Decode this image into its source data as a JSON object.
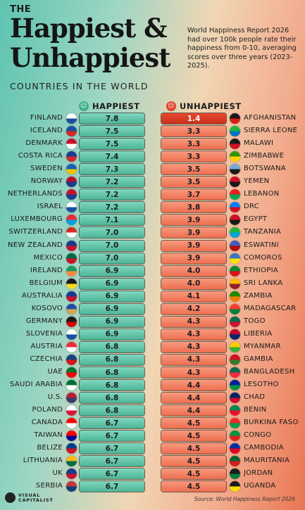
{
  "header": {
    "the": "THE",
    "title_line1": "Happiest &",
    "title_line2": "Unhappiest",
    "subtitle": "COUNTRIES IN THE WORLD",
    "intro": "World Happiness Report 2026 had over 100k people rate their happiness from 0-10, averaging scores over three years (2023-2025)."
  },
  "legend": {
    "happiest": "HAPPIEST",
    "unhappiest": "UNHAPPIEST",
    "happiest_icon": "smiley-face-icon",
    "unhappiest_icon": "sad-face-icon",
    "happiest_color": "#4db496",
    "unhappiest_color": "#ee6e4f",
    "top_unhappiest_color": "#d63a24"
  },
  "chart_data": {
    "type": "table",
    "title": "Happiest & Unhappiest Countries in the World",
    "happiest": [
      {
        "country": "FINLAND",
        "score": 7.8
      },
      {
        "country": "ICELAND",
        "score": 7.5
      },
      {
        "country": "DENMARK",
        "score": 7.5
      },
      {
        "country": "COSTA RICA",
        "score": 7.4
      },
      {
        "country": "SWEDEN",
        "score": 7.3
      },
      {
        "country": "NORWAY",
        "score": 7.2
      },
      {
        "country": "NETHERLANDS",
        "score": 7.2
      },
      {
        "country": "ISRAEL",
        "score": 7.2
      },
      {
        "country": "LUXEMBOURG",
        "score": 7.1
      },
      {
        "country": "SWITZERLAND",
        "score": 7.0
      },
      {
        "country": "NEW ZEALAND",
        "score": 7.0
      },
      {
        "country": "MEXICO",
        "score": 7.0
      },
      {
        "country": "IRELAND",
        "score": 6.9
      },
      {
        "country": "BELGIUM",
        "score": 6.9
      },
      {
        "country": "AUSTRALIA",
        "score": 6.9
      },
      {
        "country": "KOSOVO",
        "score": 6.9
      },
      {
        "country": "GERMANY",
        "score": 6.9
      },
      {
        "country": "SLOVENIA",
        "score": 6.9
      },
      {
        "country": "AUSTRIA",
        "score": 6.8
      },
      {
        "country": "CZECHIA",
        "score": 6.8
      },
      {
        "country": "UAE",
        "score": 6.8
      },
      {
        "country": "SAUDI ARABIA",
        "score": 6.8
      },
      {
        "country": "U.S.",
        "score": 6.8
      },
      {
        "country": "POLAND",
        "score": 6.8
      },
      {
        "country": "CANADA",
        "score": 6.7
      },
      {
        "country": "TAIWAN",
        "score": 6.7
      },
      {
        "country": "BELIZE",
        "score": 6.7
      },
      {
        "country": "LITHUANIA",
        "score": 6.7
      },
      {
        "country": "UK",
        "score": 6.7
      },
      {
        "country": "SERBIA",
        "score": 6.7
      }
    ],
    "unhappiest": [
      {
        "country": "AFGHANISTAN",
        "score": 1.4
      },
      {
        "country": "SIERRA LEONE",
        "score": 3.3
      },
      {
        "country": "MALAWI",
        "score": 3.3
      },
      {
        "country": "ZIMBABWE",
        "score": 3.3
      },
      {
        "country": "BOTSWANA",
        "score": 3.5
      },
      {
        "country": "YEMEN",
        "score": 3.5
      },
      {
        "country": "LEBANON",
        "score": 3.7
      },
      {
        "country": "DRC",
        "score": 3.8
      },
      {
        "country": "EGYPT",
        "score": 3.9
      },
      {
        "country": "TANZANIA",
        "score": 3.9
      },
      {
        "country": "ESWATINI",
        "score": 3.9
      },
      {
        "country": "COMOROS",
        "score": 3.9
      },
      {
        "country": "ETHIOPIA",
        "score": 4.0
      },
      {
        "country": "SRI LANKA",
        "score": 4.0
      },
      {
        "country": "ZAMBIA",
        "score": 4.1
      },
      {
        "country": "MADAGASCAR",
        "score": 4.2
      },
      {
        "country": "TOGO",
        "score": 4.3
      },
      {
        "country": "LIBERIA",
        "score": 4.3
      },
      {
        "country": "MYANMAR",
        "score": 4.3
      },
      {
        "country": "GAMBIA",
        "score": 4.3
      },
      {
        "country": "BANGLADESH",
        "score": 4.3
      },
      {
        "country": "LESOTHO",
        "score": 4.4
      },
      {
        "country": "CHAD",
        "score": 4.4
      },
      {
        "country": "BENIN",
        "score": 4.4
      },
      {
        "country": "BURKINA FASO",
        "score": 4.5
      },
      {
        "country": "CONGO",
        "score": 4.5
      },
      {
        "country": "CAMBODIA",
        "score": 4.5
      },
      {
        "country": "MAURITANIA",
        "score": 4.5
      },
      {
        "country": "JORDAN",
        "score": 4.5
      },
      {
        "country": "UGANDA",
        "score": 4.5
      }
    ]
  },
  "flags": {
    "happiest": [
      "#ffffff|#1a4fa0",
      "#1a4fa0|#d72828",
      "#c8102e|#ffffff",
      "#1a3d8f|#d72828",
      "#1a5fb4|#f4c400",
      "#ba0c2f|#1a3a8a",
      "#c8102e|#1a3d8f",
      "#ffffff|#1a4fa0",
      "#ed2939|#00a1de",
      "#d52b1e|#ffffff",
      "#1a3a8a|#c8102e",
      "#006847|#ce1126",
      "#169b62|#ff883e",
      "#1a1a1a|#fdda24",
      "#1a3a8a|#c8102e",
      "#244aa5|#d0a650",
      "#1a1a1a|#dd0000",
      "#ffffff|#1a4fa0",
      "#ed2939|#ffffff",
      "#11457e|#d7141a",
      "#00732f|#ff0000",
      "#006c35|#ffffff",
      "#b22234|#3c3b6e",
      "#ffffff|#dc143c",
      "#ff0000|#ffffff",
      "#fe0000|#000095",
      "#003f87|#ce1126",
      "#fdb913|#006a44",
      "#1a3a8a|#c8102e",
      "#c6363c|#0c4076"
    ],
    "unhappiest": [
      "#1a1a1a|#d32011",
      "#1eb53a|#0072c6",
      "#1a1a1a|#ce1126",
      "#319208|#ffd200",
      "#75aadb|#1a1a1a",
      "#ce1126|#1a1a1a",
      "#ed1c24|#00a651",
      "#007fff|#ce1021",
      "#ce1126|#1a1a1a",
      "#1eb53a|#00a3dd",
      "#3e5eb9|#b10c0c",
      "#3a75c4|#f9e206",
      "#078930|#da121a",
      "#ffb700|#8d2029",
      "#198a00|#ef7d00",
      "#fc3d32|#007e3a",
      "#006a4e|#d21034",
      "#bf0a30|#002868",
      "#fecb00|#34b233",
      "#ce1126|#3a7728",
      "#006a4e|#f42a41",
      "#00209f|#009543",
      "#002664|#c60c30",
      "#008751|#e8112d",
      "#ef2b2d|#009e49",
      "#009543|#dc241f",
      "#032ea1|#e00025",
      "#006233|#d01c1f",
      "#1a1a1a|#007a3d",
      "#1a1a1a|#fcdc04"
    ]
  },
  "footer": {
    "logo_line1": "VISUAL",
    "logo_line2": "CAPITALIST",
    "source": "Source: World Happiness Report 2026"
  }
}
